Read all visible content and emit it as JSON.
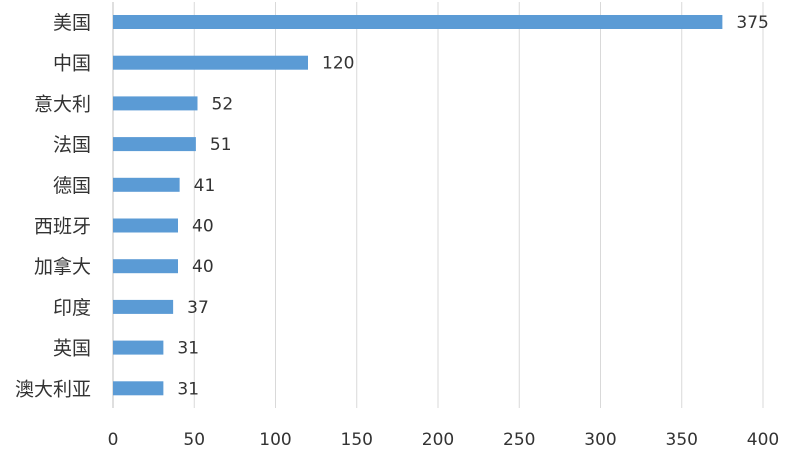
{
  "chart_data": {
    "type": "bar",
    "orientation": "horizontal",
    "categories": [
      "美国",
      "中国",
      "意大利",
      "法国",
      "德国",
      "西班牙",
      "加拿大",
      "印度",
      "英国",
      "澳大利亚"
    ],
    "values": [
      375,
      120,
      52,
      51,
      41,
      40,
      40,
      37,
      31,
      31
    ],
    "x_ticks": [
      0,
      50,
      100,
      150,
      200,
      250,
      300,
      350,
      400
    ],
    "xlim": [
      0,
      400
    ],
    "title": "",
    "xlabel": "",
    "ylabel": "",
    "grid": "vertical",
    "legend": "none",
    "bar_color": "#5b9bd5",
    "data_labels": true
  }
}
